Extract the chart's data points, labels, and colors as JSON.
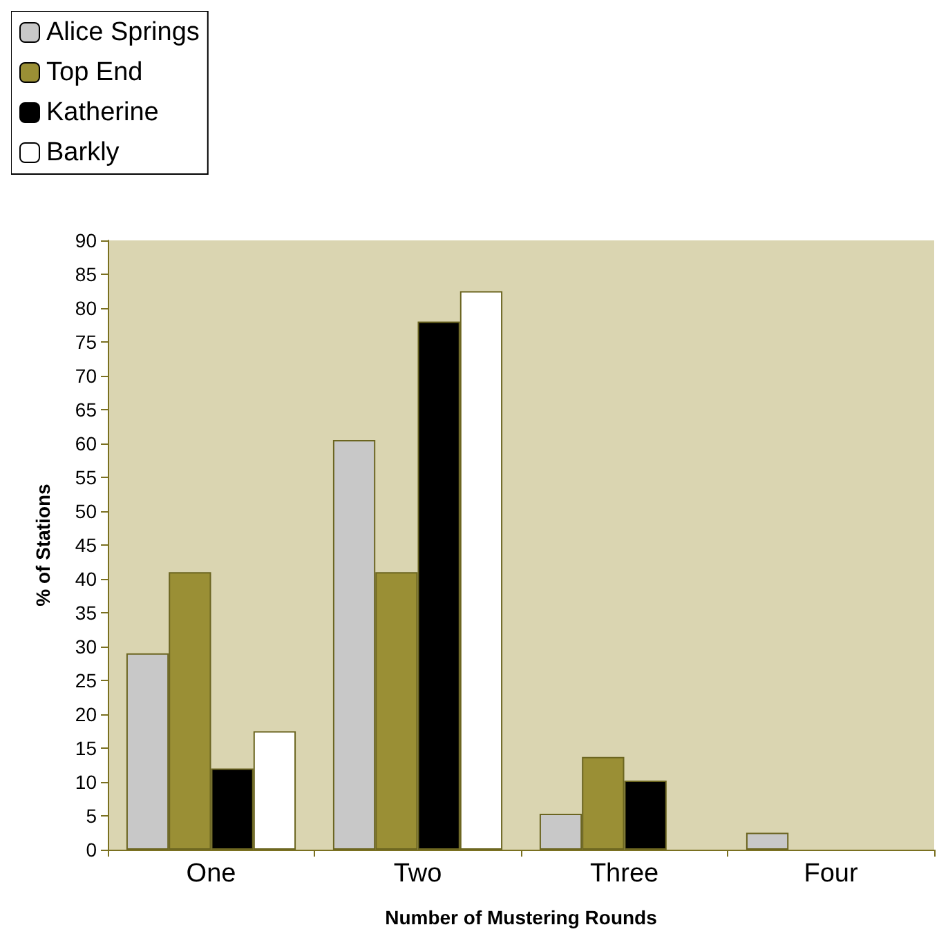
{
  "chart_data": {
    "type": "bar",
    "xlabel": "Number of Mustering Rounds",
    "ylabel": "% of Stations",
    "categories": [
      "One",
      "Two",
      "Three",
      "Four"
    ],
    "series": [
      {
        "name": "Alice Springs",
        "color": "#c8c8c8",
        "values": [
          29,
          60.5,
          5.3,
          2.5
        ]
      },
      {
        "name": "Top End",
        "color": "#9a8f35",
        "values": [
          41,
          41,
          13.7,
          0
        ]
      },
      {
        "name": "Katherine",
        "color": "#000000",
        "values": [
          12,
          78,
          10.2,
          0
        ]
      },
      {
        "name": "Barkly",
        "color": "#ffffff",
        "values": [
          17.5,
          82.5,
          0,
          0
        ]
      }
    ],
    "ylim": [
      0,
      90
    ],
    "yticks": [
      0,
      5,
      10,
      15,
      20,
      25,
      30,
      35,
      40,
      45,
      50,
      55,
      60,
      65,
      70,
      75,
      80,
      85,
      90
    ],
    "grid": false,
    "legend": "top left"
  }
}
